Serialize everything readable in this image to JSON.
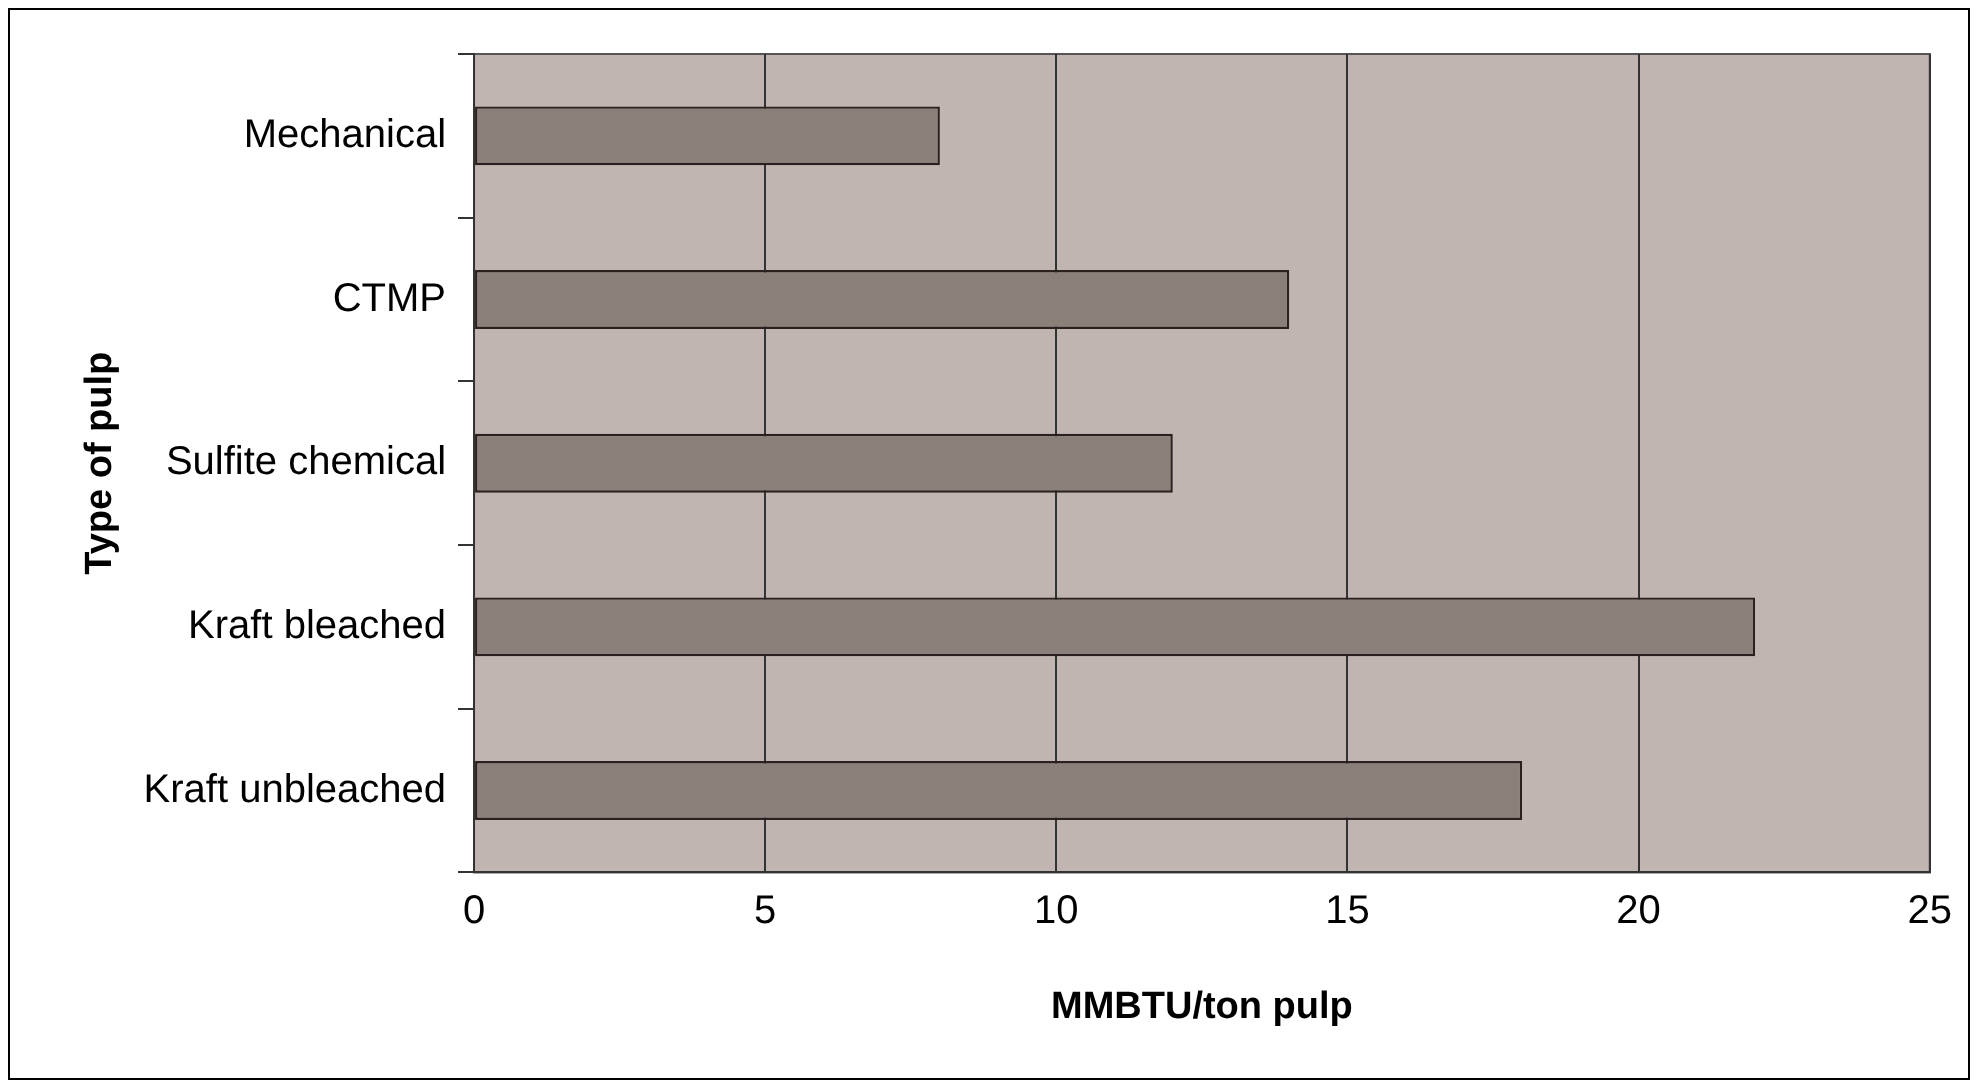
{
  "chart_data": {
    "type": "bar",
    "orientation": "horizontal",
    "xlabel": "MMBTU/ton pulp",
    "ylabel": "Type of pulp",
    "categories": [
      "Mechanical",
      "CTMP",
      "Sulfite chemical",
      "Kraft bleached",
      "Kraft unbleached"
    ],
    "values": [
      8,
      14,
      12,
      22,
      18
    ],
    "color": "#8b7f7a",
    "xlim": [
      0,
      25
    ],
    "xticks": [
      0,
      5,
      10,
      15,
      20,
      25
    ],
    "grid": "x",
    "legend": false
  }
}
